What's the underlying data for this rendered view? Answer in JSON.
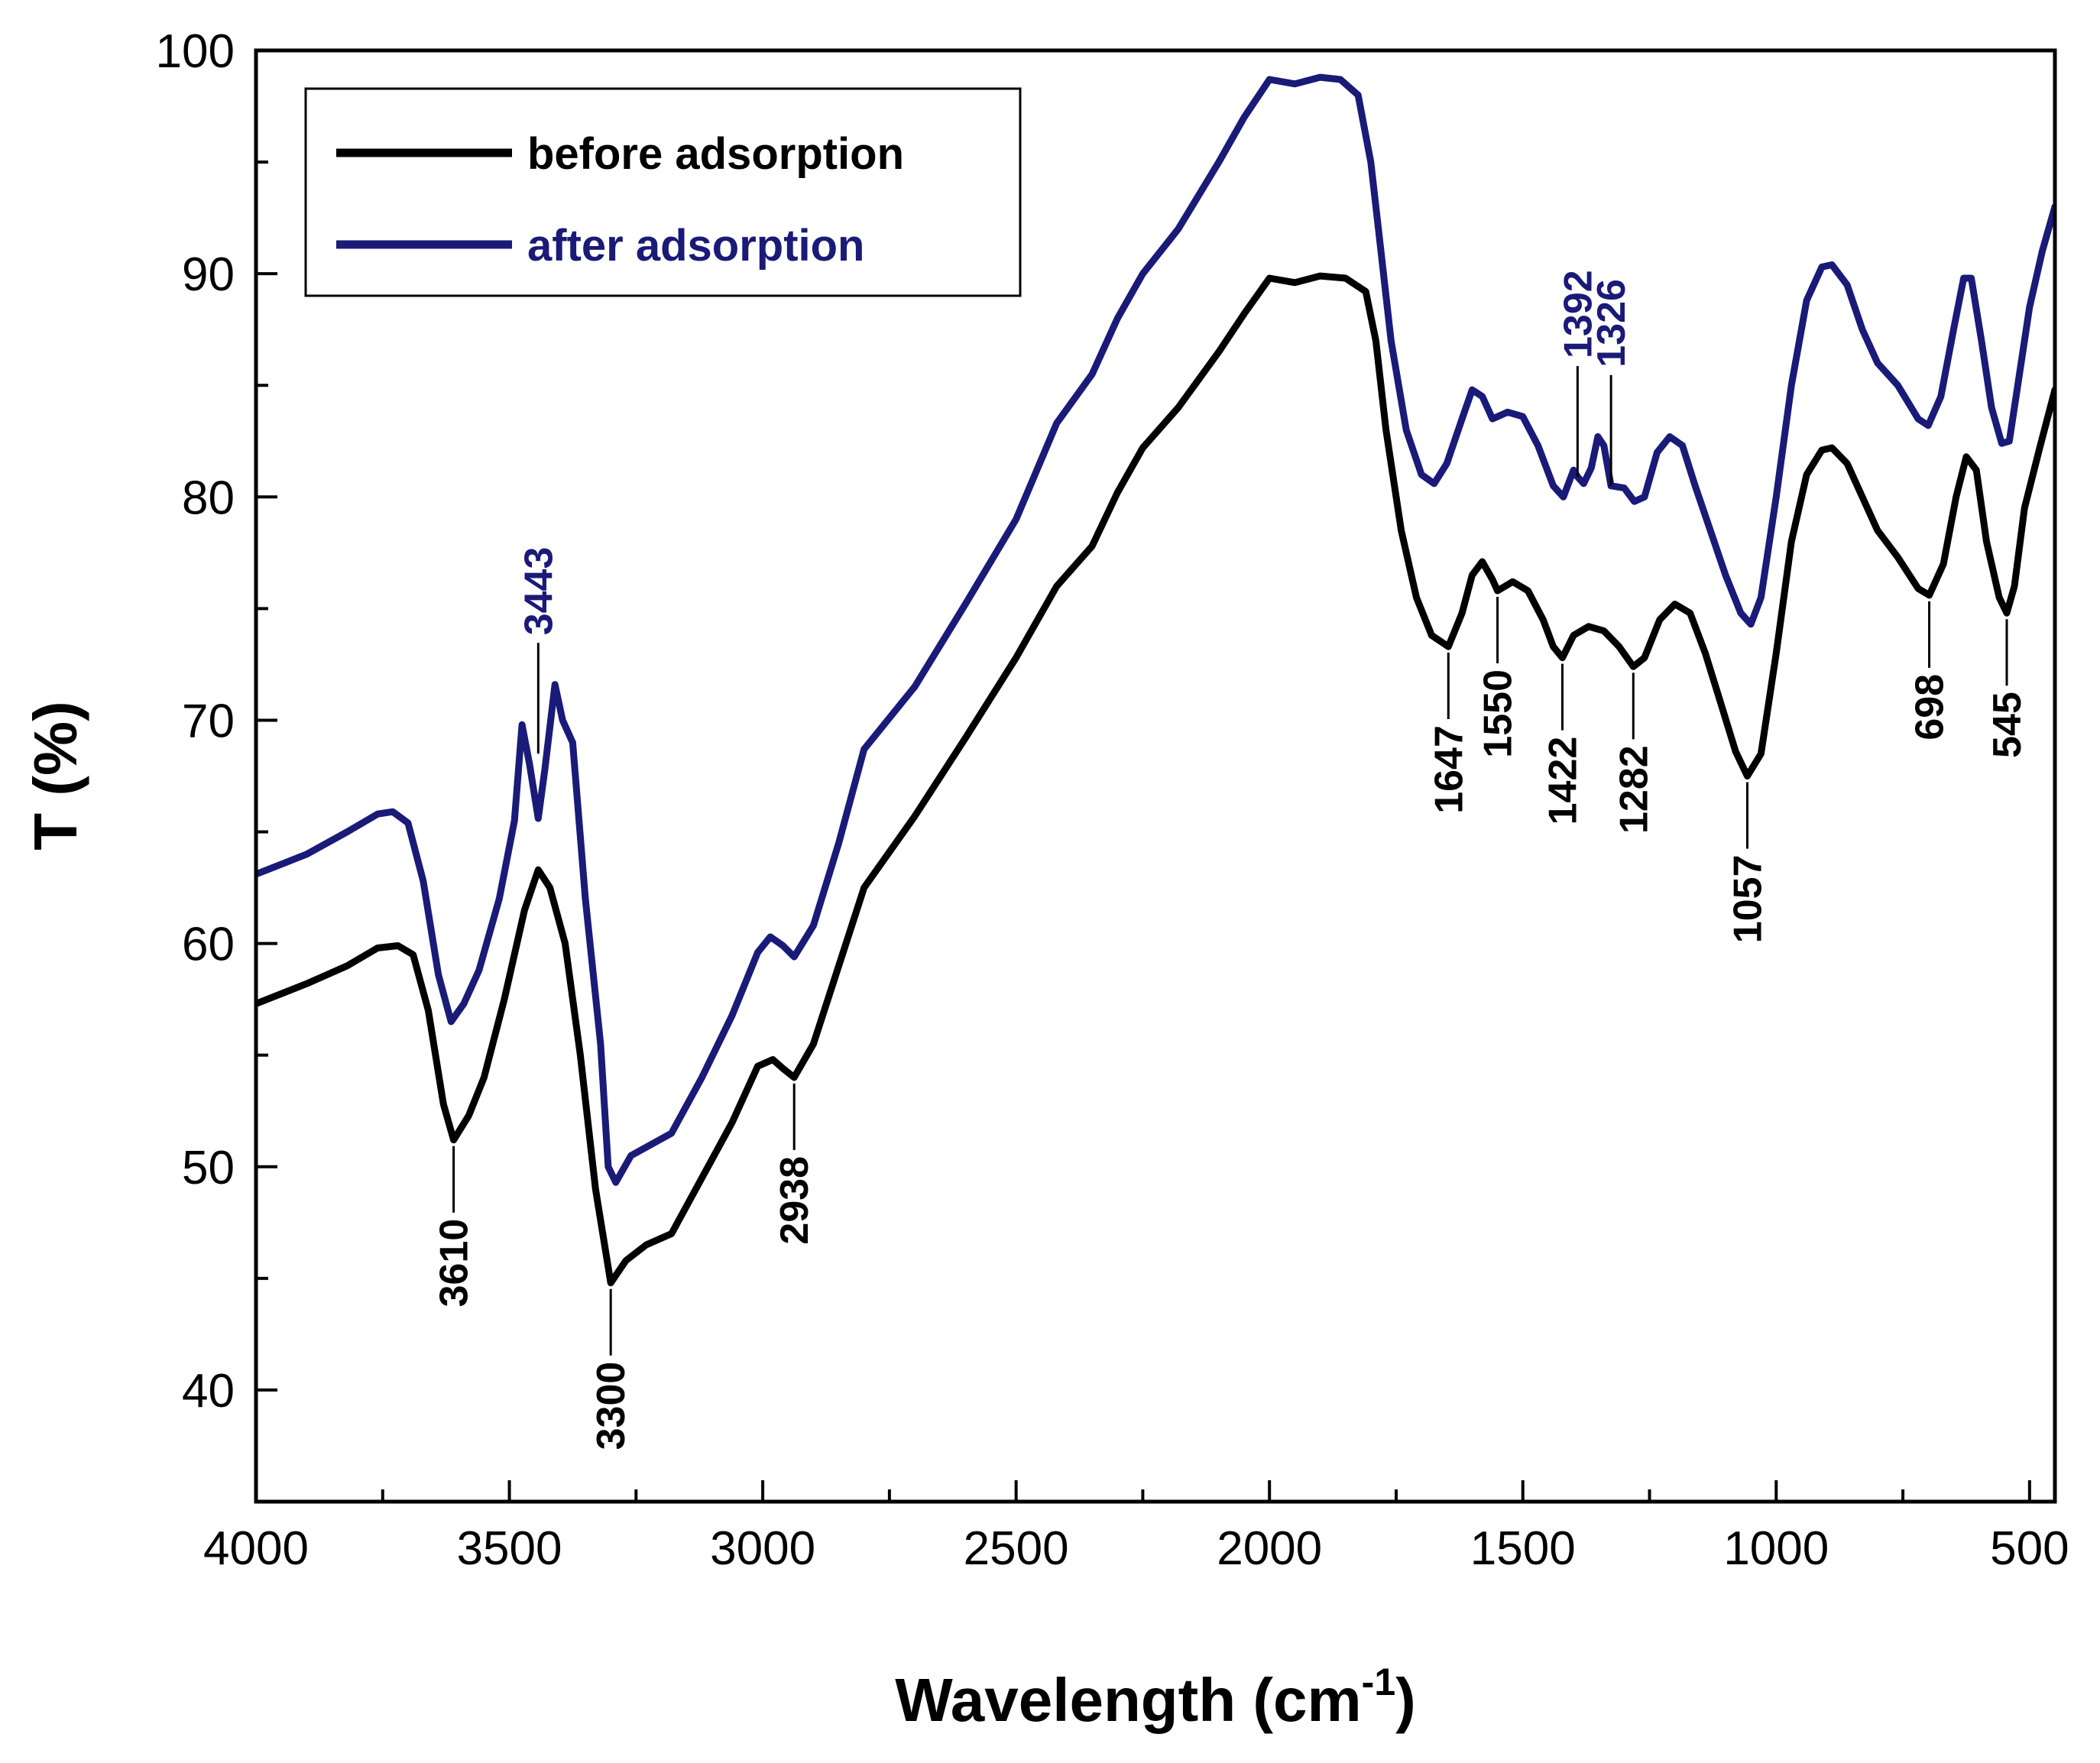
{
  "chart_data": {
    "type": "line",
    "title": "",
    "xlabel": "Wavelength (cm",
    "xlabel_sup": "-1",
    "xlabel_close": ")",
    "ylabel": "T (%)",
    "xlim": [
      4000,
      450
    ],
    "ylim": [
      35,
      100
    ],
    "x_ticks": [
      4000,
      3500,
      3000,
      2500,
      2000,
      1500,
      1000,
      500
    ],
    "x_tick_labels": [
      "4000",
      "3500",
      "3000",
      "2500",
      "2000",
      "1500",
      "1000",
      "500"
    ],
    "y_ticks": [
      40,
      50,
      60,
      70,
      80,
      90,
      100
    ],
    "y_tick_labels": [
      "40",
      "50",
      "60",
      "70",
      "80",
      "90",
      "100"
    ],
    "grid": false,
    "legend_position": "top-left",
    "series": [
      {
        "name": "before adsorption",
        "color": "#000000",
        "points": [
          [
            4000,
            57.3
          ],
          [
            3900,
            58.2
          ],
          [
            3820,
            59.0
          ],
          [
            3760,
            59.8
          ],
          [
            3720,
            59.9
          ],
          [
            3690,
            59.5
          ],
          [
            3660,
            57.0
          ],
          [
            3630,
            52.8
          ],
          [
            3610,
            51.2
          ],
          [
            3580,
            52.3
          ],
          [
            3550,
            54.0
          ],
          [
            3510,
            57.5
          ],
          [
            3470,
            61.5
          ],
          [
            3443,
            63.3
          ],
          [
            3420,
            62.5
          ],
          [
            3390,
            60.0
          ],
          [
            3360,
            55.0
          ],
          [
            3330,
            49.0
          ],
          [
            3300,
            44.8
          ],
          [
            3270,
            45.8
          ],
          [
            3230,
            46.5
          ],
          [
            3180,
            47.0
          ],
          [
            3120,
            49.5
          ],
          [
            3060,
            52.0
          ],
          [
            3010,
            54.5
          ],
          [
            2980,
            54.8
          ],
          [
            2960,
            54.4
          ],
          [
            2938,
            54.0
          ],
          [
            2900,
            55.5
          ],
          [
            2850,
            59.0
          ],
          [
            2800,
            62.5
          ],
          [
            2700,
            65.7
          ],
          [
            2600,
            69.2
          ],
          [
            2500,
            72.8
          ],
          [
            2420,
            76.0
          ],
          [
            2350,
            77.8
          ],
          [
            2300,
            80.2
          ],
          [
            2250,
            82.2
          ],
          [
            2180,
            84.0
          ],
          [
            2100,
            86.5
          ],
          [
            2050,
            88.2
          ],
          [
            2000,
            89.8
          ],
          [
            1950,
            89.6
          ],
          [
            1900,
            89.9
          ],
          [
            1850,
            89.8
          ],
          [
            1810,
            89.2
          ],
          [
            1790,
            87.0
          ],
          [
            1770,
            83.0
          ],
          [
            1740,
            78.5
          ],
          [
            1710,
            75.5
          ],
          [
            1680,
            73.8
          ],
          [
            1647,
            73.3
          ],
          [
            1620,
            74.8
          ],
          [
            1600,
            76.5
          ],
          [
            1580,
            77.1
          ],
          [
            1560,
            76.3
          ],
          [
            1550,
            75.8
          ],
          [
            1520,
            76.2
          ],
          [
            1490,
            75.8
          ],
          [
            1460,
            74.5
          ],
          [
            1440,
            73.3
          ],
          [
            1422,
            72.8
          ],
          [
            1400,
            73.8
          ],
          [
            1370,
            74.2
          ],
          [
            1340,
            74.0
          ],
          [
            1310,
            73.3
          ],
          [
            1282,
            72.4
          ],
          [
            1260,
            72.8
          ],
          [
            1230,
            74.5
          ],
          [
            1200,
            75.2
          ],
          [
            1170,
            74.8
          ],
          [
            1140,
            73.0
          ],
          [
            1110,
            70.8
          ],
          [
            1080,
            68.6
          ],
          [
            1057,
            67.5
          ],
          [
            1030,
            68.5
          ],
          [
            1000,
            73.0
          ],
          [
            970,
            78.0
          ],
          [
            940,
            81.0
          ],
          [
            910,
            82.1
          ],
          [
            890,
            82.2
          ],
          [
            860,
            81.5
          ],
          [
            830,
            80.0
          ],
          [
            800,
            78.5
          ],
          [
            760,
            77.3
          ],
          [
            720,
            75.9
          ],
          [
            698,
            75.6
          ],
          [
            670,
            77.0
          ],
          [
            645,
            80.0
          ],
          [
            625,
            81.8
          ],
          [
            605,
            81.2
          ],
          [
            585,
            78.0
          ],
          [
            560,
            75.5
          ],
          [
            545,
            74.8
          ],
          [
            530,
            76.0
          ],
          [
            510,
            79.5
          ],
          [
            480,
            82.2
          ],
          [
            450,
            84.8
          ]
        ]
      },
      {
        "name": "after adsorption",
        "color": "#1a1a78",
        "points": [
          [
            4000,
            63.1
          ],
          [
            3900,
            64.0
          ],
          [
            3820,
            65.0
          ],
          [
            3760,
            65.8
          ],
          [
            3730,
            65.9
          ],
          [
            3700,
            65.4
          ],
          [
            3670,
            62.8
          ],
          [
            3640,
            58.6
          ],
          [
            3615,
            56.5
          ],
          [
            3590,
            57.3
          ],
          [
            3560,
            58.8
          ],
          [
            3520,
            62.0
          ],
          [
            3490,
            65.5
          ],
          [
            3475,
            69.8
          ],
          [
            3460,
            68.0
          ],
          [
            3443,
            65.6
          ],
          [
            3430,
            67.8
          ],
          [
            3410,
            71.6
          ],
          [
            3395,
            70.0
          ],
          [
            3375,
            69.0
          ],
          [
            3350,
            62.0
          ],
          [
            3320,
            55.5
          ],
          [
            3305,
            50.0
          ],
          [
            3290,
            49.3
          ],
          [
            3260,
            50.5
          ],
          [
            3220,
            51.0
          ],
          [
            3180,
            51.5
          ],
          [
            3120,
            54.0
          ],
          [
            3060,
            56.8
          ],
          [
            3010,
            59.6
          ],
          [
            2985,
            60.3
          ],
          [
            2960,
            59.9
          ],
          [
            2938,
            59.4
          ],
          [
            2900,
            60.8
          ],
          [
            2850,
            64.5
          ],
          [
            2800,
            68.7
          ],
          [
            2700,
            71.5
          ],
          [
            2600,
            75.2
          ],
          [
            2500,
            79.0
          ],
          [
            2420,
            83.3
          ],
          [
            2350,
            85.5
          ],
          [
            2300,
            88.0
          ],
          [
            2250,
            90.0
          ],
          [
            2180,
            92.0
          ],
          [
            2100,
            95.0
          ],
          [
            2050,
            97.0
          ],
          [
            2000,
            98.7
          ],
          [
            1950,
            98.5
          ],
          [
            1900,
            98.8
          ],
          [
            1860,
            98.7
          ],
          [
            1825,
            98.0
          ],
          [
            1800,
            95.0
          ],
          [
            1780,
            91.0
          ],
          [
            1760,
            87.0
          ],
          [
            1730,
            83.0
          ],
          [
            1700,
            81.0
          ],
          [
            1675,
            80.6
          ],
          [
            1650,
            81.5
          ],
          [
            1620,
            83.5
          ],
          [
            1600,
            84.8
          ],
          [
            1580,
            84.5
          ],
          [
            1560,
            83.5
          ],
          [
            1530,
            83.8
          ],
          [
            1500,
            83.6
          ],
          [
            1470,
            82.3
          ],
          [
            1440,
            80.5
          ],
          [
            1420,
            80.0
          ],
          [
            1400,
            81.2
          ],
          [
            1392,
            80.9
          ],
          [
            1380,
            80.6
          ],
          [
            1365,
            81.3
          ],
          [
            1352,
            82.7
          ],
          [
            1340,
            82.3
          ],
          [
            1326,
            80.5
          ],
          [
            1300,
            80.4
          ],
          [
            1280,
            79.8
          ],
          [
            1260,
            80.0
          ],
          [
            1235,
            82.0
          ],
          [
            1210,
            82.7
          ],
          [
            1185,
            82.3
          ],
          [
            1160,
            80.5
          ],
          [
            1130,
            78.5
          ],
          [
            1100,
            76.5
          ],
          [
            1070,
            74.8
          ],
          [
            1050,
            74.3
          ],
          [
            1030,
            75.5
          ],
          [
            1000,
            80.0
          ],
          [
            970,
            85.0
          ],
          [
            940,
            88.8
          ],
          [
            910,
            90.3
          ],
          [
            890,
            90.4
          ],
          [
            860,
            89.5
          ],
          [
            830,
            87.5
          ],
          [
            800,
            86.0
          ],
          [
            760,
            85.0
          ],
          [
            720,
            83.5
          ],
          [
            700,
            83.2
          ],
          [
            675,
            84.5
          ],
          [
            650,
            87.5
          ],
          [
            630,
            89.8
          ],
          [
            615,
            89.8
          ],
          [
            595,
            87.0
          ],
          [
            575,
            84.0
          ],
          [
            555,
            82.4
          ],
          [
            540,
            82.5
          ],
          [
            520,
            85.5
          ],
          [
            500,
            88.5
          ],
          [
            475,
            91.0
          ],
          [
            450,
            93.0
          ]
        ]
      }
    ],
    "peak_annotations": [
      {
        "label": "3610",
        "x": 3610,
        "y": 51.2,
        "side": "below",
        "color": "#000000"
      },
      {
        "label": "3300",
        "x": 3300,
        "y": 44.8,
        "side": "below",
        "color": "#000000"
      },
      {
        "label": "2938",
        "x": 2938,
        "y": 54.0,
        "side": "below",
        "color": "#000000"
      },
      {
        "label": "1647",
        "x": 1647,
        "y": 73.3,
        "side": "below",
        "color": "#000000"
      },
      {
        "label": "1550",
        "x": 1550,
        "y": 75.8,
        "side": "below",
        "color": "#000000"
      },
      {
        "label": "1422",
        "x": 1422,
        "y": 72.8,
        "side": "below",
        "color": "#000000"
      },
      {
        "label": "1282",
        "x": 1282,
        "y": 72.4,
        "side": "below",
        "color": "#000000"
      },
      {
        "label": "1057",
        "x": 1057,
        "y": 67.5,
        "side": "below",
        "color": "#000000"
      },
      {
        "label": "698",
        "x": 698,
        "y": 75.6,
        "side": "below",
        "color": "#000000"
      },
      {
        "label": "545",
        "x": 545,
        "y": 74.8,
        "side": "below",
        "color": "#000000"
      },
      {
        "label": "3443",
        "x": 3443,
        "y": 68.5,
        "side": "above",
        "color": "#1a1a78"
      },
      {
        "label": "1392",
        "x": 1392,
        "y": 80.9,
        "side": "above",
        "color": "#1a1a78"
      },
      {
        "label": "1326",
        "x": 1326,
        "y": 80.5,
        "side": "above",
        "color": "#1a1a78"
      }
    ]
  }
}
